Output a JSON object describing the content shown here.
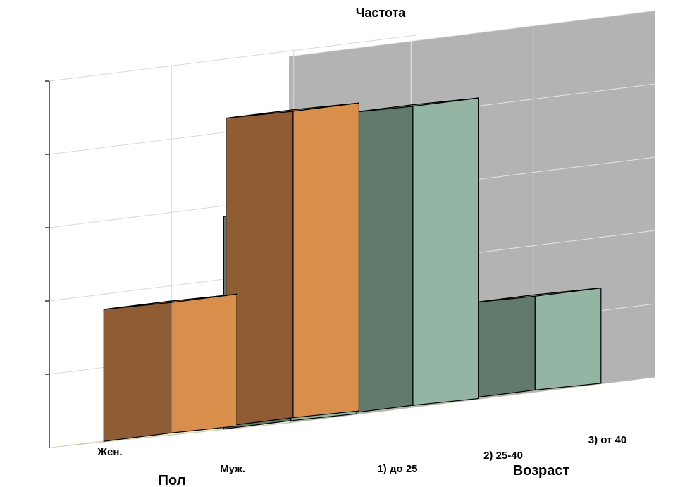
{
  "chart_data": {
    "type": "bar",
    "zlabel": "Частота",
    "xlabel": "Пол",
    "ylabel": "Возраст",
    "x_categories": [
      "Жен.",
      "Муж."
    ],
    "y_categories": [
      "1) до 25",
      "2) 25-40",
      "3) от 40"
    ],
    "zlim": [
      0,
      5
    ],
    "grid": true,
    "series": [
      {
        "sex": "Жен.",
        "age": "1) до 25",
        "value": 1.8
      },
      {
        "sex": "Жен.",
        "age": "2) 25-40",
        "value": 4.2
      },
      {
        "sex": "Муж.",
        "age": "1) до 25",
        "value": 2.9
      },
      {
        "sex": "Муж.",
        "age": "2) 25-40",
        "value": 4.1
      },
      {
        "sex": "Муж.",
        "age": "3) от 40",
        "value": 1.3
      }
    ],
    "colors": {
      "female_front": "#8f5c33",
      "female_side": "#d98f4c",
      "female_top": "#b3733f",
      "male_front": "#617a6b",
      "male_side": "#94b5a3",
      "male_top": "#7a9c8a",
      "back_wall": "#b3b3b3",
      "floor": "#ebebd6",
      "grid": "#d9d9d9"
    }
  }
}
